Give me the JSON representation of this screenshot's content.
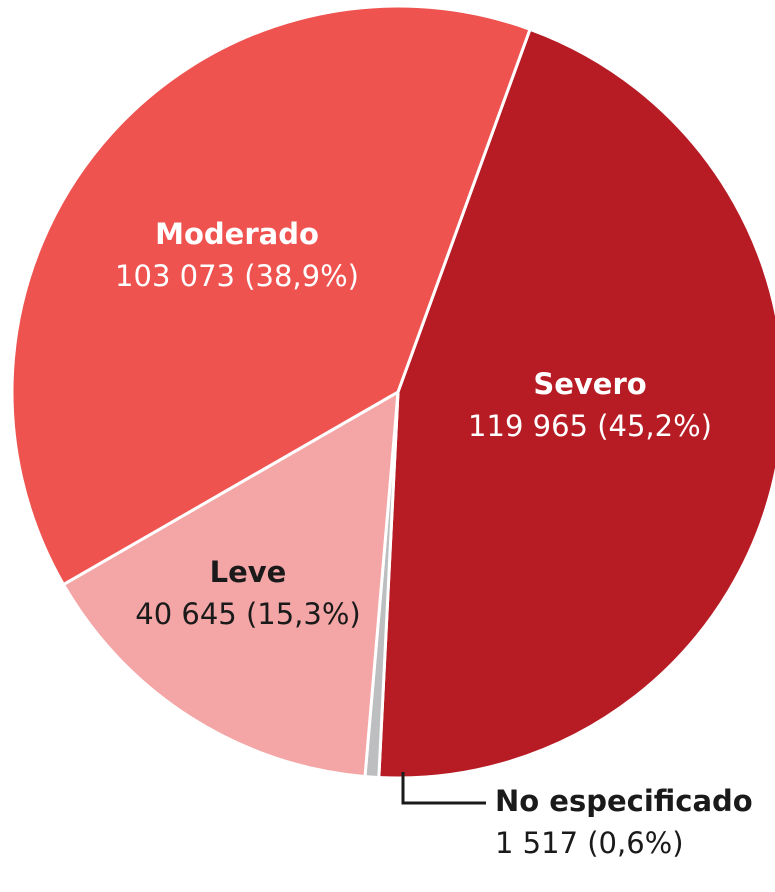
{
  "chart_data": {
    "type": "pie",
    "categories": [
      "Severo",
      "No especificado",
      "Leve",
      "Moderado"
    ],
    "values": [
      119965,
      1517,
      40645,
      103073
    ],
    "value_labels": [
      "119 965 (45,2%)",
      "1 517 (0,6%)",
      "40 645 (15,3%)",
      "103 073 (38,9%)"
    ],
    "colors": [
      "#b71c24",
      "#bcbec0",
      "#f4a5a6",
      "#ef5350"
    ]
  }
}
